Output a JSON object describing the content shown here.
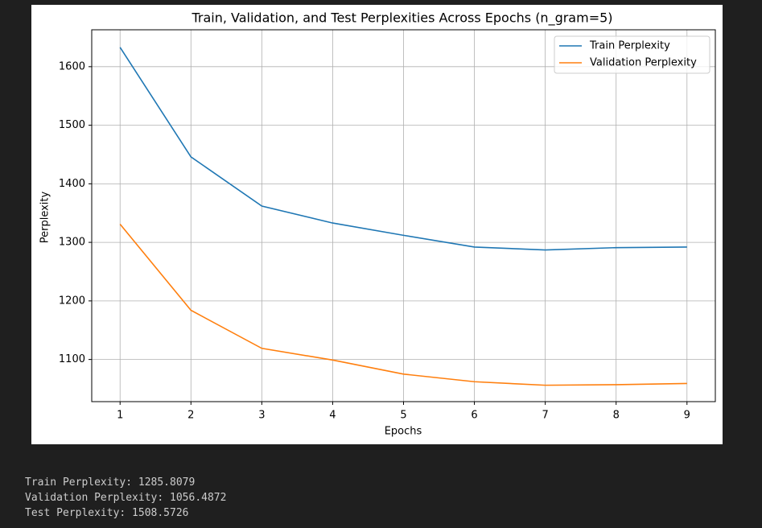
{
  "chart_data": {
    "type": "line",
    "title": "Train, Validation, and Test Perplexities Across Epochs (n_gram=5)",
    "x_label": "Epochs",
    "y_label": "Perplexity",
    "x": [
      1,
      2,
      3,
      4,
      5,
      6,
      7,
      8,
      9
    ],
    "series": [
      {
        "name": "Train Perplexity",
        "color": "#1f77b4",
        "values": [
          1633,
          1446,
          1362,
          1333,
          1312,
          1292,
          1287,
          1291,
          1292
        ]
      },
      {
        "name": "Validation Perplexity",
        "color": "#ff7f0e",
        "values": [
          1331,
          1184,
          1119,
          1099,
          1075,
          1062,
          1056,
          1057,
          1059
        ]
      }
    ],
    "xlim": [
      0.6,
      9.4
    ],
    "xticks": [
      1,
      2,
      3,
      4,
      5,
      6,
      7,
      8,
      9
    ],
    "ylim": [
      1028,
      1663
    ],
    "yticks": [
      1100,
      1200,
      1300,
      1400,
      1500,
      1600
    ],
    "grid": true,
    "legend": "upper right"
  },
  "output": {
    "lines": [
      "Train Perplexity: 1285.8079",
      "Validation Perplexity: 1056.4872",
      "Test Perplexity: 1508.5726"
    ]
  }
}
